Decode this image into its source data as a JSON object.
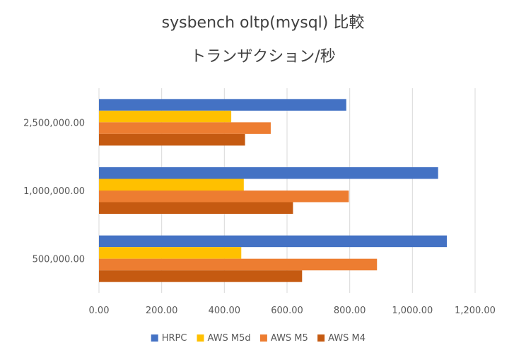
{
  "chart_data": {
    "type": "bar",
    "orientation": "horizontal",
    "title": "sysbench oltp(mysql) 比較",
    "subtitle": "トランザクション/秒",
    "categories": [
      "2,500,000.00",
      "1,000,000.00",
      "500,000.00"
    ],
    "series": [
      {
        "name": "HRPC",
        "color": "#4472C4",
        "values": [
          789,
          1082,
          1110
        ]
      },
      {
        "name": "AWS M5d",
        "color": "#FFC000",
        "values": [
          422,
          462,
          454
        ]
      },
      {
        "name": "AWS M5",
        "color": "#ED7D31",
        "values": [
          548,
          797,
          887
        ]
      },
      {
        "name": "AWS M4",
        "color": "#C55A11",
        "values": [
          466,
          619,
          648
        ]
      }
    ],
    "x_ticks": [
      "0.00",
      "200.00",
      "400.00",
      "600.00",
      "800.00",
      "1,000.00",
      "1,200.00"
    ],
    "xlim": [
      0,
      1200
    ],
    "grid": true,
    "legend_position": "bottom"
  }
}
